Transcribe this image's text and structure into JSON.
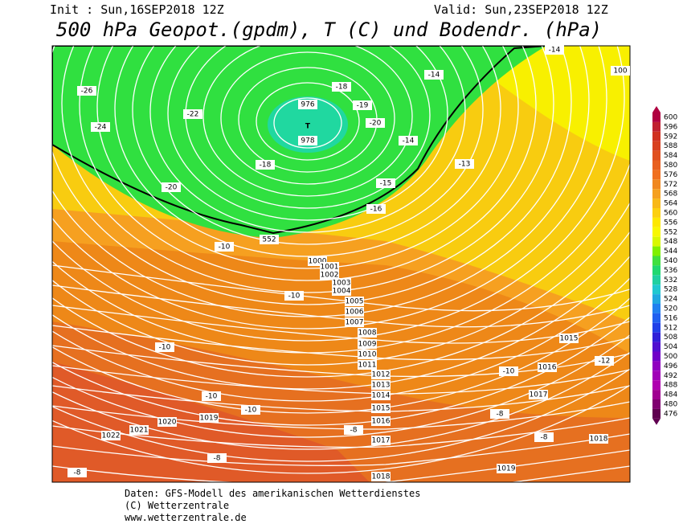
{
  "header": {
    "init": "Init : Sun,16SEP2018 12Z",
    "valid": "Valid: Sun,23SEP2018 12Z",
    "title": "500 hPa Geopot.(gpdm), T (C) und Bodendr. (hPa)"
  },
  "map": {
    "low_label": "T",
    "labels": [
      "1000",
      "1001",
      "1002",
      "1003",
      "1004",
      "1005",
      "1006",
      "1007",
      "1008",
      "1009",
      "1010",
      "1011",
      "1012",
      "1013",
      "1014",
      "1015",
      "1016",
      "1017",
      "1018",
      "1019",
      "1020",
      "1021",
      "1022",
      "1015",
      "1016",
      "1017",
      "1018",
      "1019",
      "100",
      "976",
      "978",
      "552",
      "-10",
      "-10",
      "-10",
      "-8",
      "-8",
      "-8",
      "-8",
      "-8",
      "-10",
      "-12",
      "-10",
      "-10",
      "-18",
      "-20",
      "-22",
      "-24",
      "-26",
      "-18",
      "-19",
      "-20",
      "-14",
      "-15",
      "-16",
      "-14",
      "-13",
      "-14"
    ]
  },
  "colorbar": {
    "values": [
      600,
      596,
      592,
      588,
      584,
      580,
      576,
      572,
      568,
      564,
      560,
      556,
      552,
      548,
      544,
      540,
      536,
      532,
      528,
      524,
      520,
      516,
      512,
      508,
      504,
      500,
      496,
      492,
      488,
      484,
      480,
      476
    ],
    "colors": [
      "#b00040",
      "#c02030",
      "#d03020",
      "#d84020",
      "#e05020",
      "#e86020",
      "#f07020",
      "#f08820",
      "#f5a020",
      "#f8b818",
      "#fcd010",
      "#fde800",
      "#f8f800",
      "#d8f800",
      "#80f000",
      "#40e040",
      "#20d870",
      "#20d0a0",
      "#20c8d0",
      "#20a8e0",
      "#2080f0",
      "#2060f0",
      "#2040e8",
      "#3020d8",
      "#5010d0",
      "#7000c8",
      "#9000c0",
      "#a000b8",
      "#b000b0",
      "#a00090",
      "#800070",
      "#600050"
    ]
  },
  "footer": {
    "lines": [
      "Daten: GFS-Modell des amerikanischen Wetterdienstes",
      "(C) Wetterzentrale",
      "www.wetterzentrale.de"
    ]
  }
}
